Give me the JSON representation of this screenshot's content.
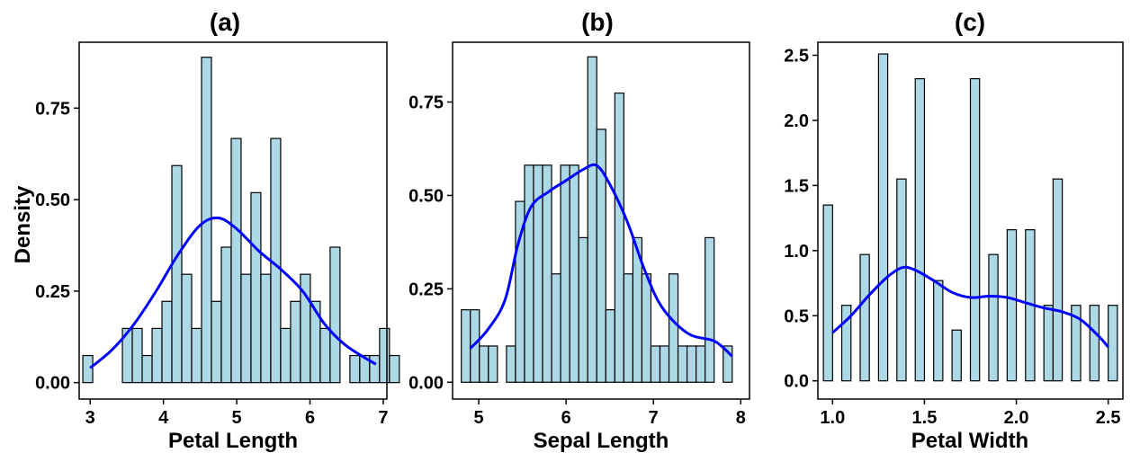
{
  "figure": {
    "shared_ylabel": "Density",
    "bar_fill": "#add8e6",
    "bar_edge": "#000000",
    "kde_color": "#0000ff"
  },
  "chart_data": [
    {
      "type": "histogram",
      "title": "(a)",
      "xlabel": "Petal Length",
      "ylabel": "Density",
      "xlim": [
        2.85,
        7.05
      ],
      "ylim": [
        -0.045,
        0.93
      ],
      "xticks": [
        3,
        4,
        5,
        6,
        7
      ],
      "xtick_labels": [
        "3",
        "4",
        "5",
        "6",
        "7"
      ],
      "yticks": [
        0,
        0.25,
        0.5,
        0.75
      ],
      "ytick_labels": [
        "0.00",
        "0.25",
        "0.50",
        "0.75"
      ],
      "bin_start": 2.9,
      "bin_width": 0.135,
      "values": [
        0.074,
        0,
        0,
        0,
        0.148,
        0.148,
        0.074,
        0.148,
        0.222,
        0.593,
        0.296,
        0.148,
        0.889,
        0.222,
        0.37,
        0.667,
        0.296,
        0.519,
        0.296,
        0.667,
        0.148,
        0.222,
        0.296,
        0.222,
        0.148,
        0.37,
        0,
        0.074,
        0.074,
        0.074,
        0.148,
        0.074
      ],
      "density_curve": {
        "x": [
          3.0,
          3.3,
          3.6,
          3.9,
          4.2,
          4.5,
          4.75,
          5.0,
          5.3,
          5.6,
          5.9,
          6.2,
          6.5,
          6.9
        ],
        "y": [
          0.04,
          0.09,
          0.16,
          0.25,
          0.35,
          0.43,
          0.45,
          0.42,
          0.36,
          0.31,
          0.25,
          0.16,
          0.1,
          0.05
        ]
      }
    },
    {
      "type": "histogram",
      "title": "(b)",
      "xlabel": "Sepal Length",
      "ylabel": "",
      "xlim": [
        4.7,
        8.1
      ],
      "ylim": [
        -0.045,
        0.91
      ],
      "xticks": [
        5,
        6,
        7,
        8
      ],
      "xtick_labels": [
        "5",
        "6",
        "7",
        "8"
      ],
      "yticks": [
        0,
        0.25,
        0.5,
        0.75
      ],
      "ytick_labels": [
        "0.00",
        "0.25",
        "0.50",
        "0.75"
      ],
      "bin_start": 4.8,
      "bin_width": 0.1034,
      "values": [
        0.194,
        0.194,
        0.097,
        0.097,
        0,
        0.097,
        0.484,
        0.581,
        0.581,
        0.581,
        0.29,
        0.581,
        0.581,
        0.387,
        0.871,
        0.677,
        0.194,
        0.774,
        0.29,
        0.387,
        0.29,
        0.097,
        0.097,
        0.29,
        0.097,
        0.097,
        0.097,
        0.387,
        0,
        0.097
      ],
      "density_curve": {
        "x": [
          4.9,
          5.1,
          5.3,
          5.45,
          5.6,
          5.8,
          6.0,
          6.2,
          6.35,
          6.5,
          6.7,
          6.9,
          7.1,
          7.4,
          7.7,
          7.9
        ],
        "y": [
          0.09,
          0.14,
          0.22,
          0.37,
          0.47,
          0.51,
          0.54,
          0.57,
          0.58,
          0.53,
          0.43,
          0.3,
          0.2,
          0.13,
          0.11,
          0.07
        ]
      }
    },
    {
      "type": "histogram",
      "title": "(c)",
      "xlabel": "Petal Width",
      "ylabel": "",
      "xlim": [
        0.92,
        2.58
      ],
      "ylim": [
        -0.14,
        2.6
      ],
      "xticks": [
        1.0,
        1.5,
        2.0,
        2.5
      ],
      "xtick_labels": [
        "1.0",
        "1.5",
        "2.0",
        "2.5"
      ],
      "yticks": [
        0,
        0.5,
        1.0,
        1.5,
        2.0,
        2.5
      ],
      "ytick_labels": [
        "0.0",
        "0.5",
        "1.0",
        "1.5",
        "2.0",
        "2.5"
      ],
      "bin_start": 0.95,
      "bin_width": 0.05,
      "values": [
        1.35,
        0,
        0.58,
        0,
        0.97,
        0,
        2.51,
        0,
        1.55,
        0,
        2.32,
        0,
        0.77,
        0,
        0.39,
        0,
        2.32,
        0,
        0.97,
        0,
        1.16,
        0,
        1.16,
        0,
        0.58,
        1.55,
        0,
        0.58,
        0,
        0.58,
        0,
        0.58
      ],
      "density_curve": {
        "x": [
          1.0,
          1.1,
          1.2,
          1.3,
          1.38,
          1.45,
          1.55,
          1.65,
          1.75,
          1.85,
          1.95,
          2.05,
          2.15,
          2.25,
          2.35,
          2.45,
          2.5
        ],
        "y": [
          0.37,
          0.5,
          0.66,
          0.8,
          0.87,
          0.85,
          0.77,
          0.68,
          0.64,
          0.65,
          0.64,
          0.6,
          0.56,
          0.53,
          0.47,
          0.34,
          0.26
        ]
      }
    }
  ]
}
